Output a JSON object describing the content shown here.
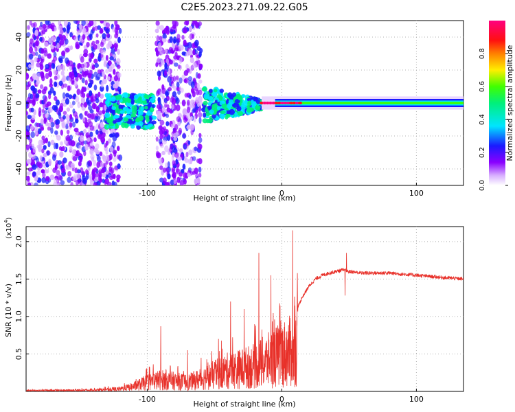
{
  "title": "C2E5.2023.271.09.22.G05",
  "colors": {
    "snr_line": "#e8312a",
    "grid": "#b0b0b0",
    "spectrogram_background": "#ffffff"
  },
  "chart_data": [
    {
      "type": "heatmap",
      "title": "C2E5.2023.271.09.22.G05",
      "xlabel": "Height of straight line (km)",
      "ylabel": "Frequency (Hz)",
      "xlim": [
        -190,
        135
      ],
      "ylim": [
        -50,
        50
      ],
      "xticks": [
        -100,
        0,
        100
      ],
      "yticks": [
        -40,
        -20,
        0,
        20,
        40
      ],
      "colorbar": {
        "label": "Normalized spectral amplitude",
        "range": [
          0,
          1
        ],
        "ticks": [
          0.0,
          0.2,
          0.4,
          0.6,
          0.8
        ],
        "tick_labels": [
          "0.0",
          "0.2",
          "0.4",
          "0.6",
          "0.8"
        ],
        "colormap": "rainbow (white-purple-blue-cyan-green-yellow-red-magenta)"
      },
      "features": [
        {
          "name": "scatter noise band",
          "x_range": [
            -190,
            -120
          ],
          "freq_range": [
            -50,
            50
          ]
        },
        {
          "name": "scatter noise band",
          "x_range": [
            -93,
            -60
          ],
          "freq_range": [
            -50,
            50
          ]
        },
        {
          "name": "signal onset cluster",
          "x_range": [
            -130,
            -95
          ],
          "freq_range": [
            -15,
            5
          ]
        },
        {
          "name": "converging signal",
          "x_range": [
            -58,
            -15
          ],
          "freq_range": [
            -12,
            10
          ]
        },
        {
          "name": "steady carrier near 0 Hz",
          "x_range": [
            -15,
            135
          ],
          "freq_range": [
            -3,
            3
          ],
          "peak_amplitude": 0.95
        }
      ],
      "grid": true
    },
    {
      "type": "line",
      "xlabel": "Height of straight line (km)",
      "ylabel": "SNR (10 * v/v)",
      "y_multiplier_label": "(x10",
      "y_multiplier_exp": "4",
      "y_multiplier_close": ")",
      "xlim": [
        -190,
        135
      ],
      "ylim": [
        0,
        2.2
      ],
      "xticks": [
        -100,
        0,
        100
      ],
      "yticks": [
        0.5,
        1.0,
        1.5,
        2.0
      ],
      "ytick_labels": [
        "0.5",
        "1.0",
        "1.5",
        "2.0"
      ],
      "envelope": {
        "x": [
          -190,
          -140,
          -120,
          -110,
          -100,
          -90,
          -80,
          -70,
          -60,
          -50,
          -40,
          -30,
          -20,
          -10,
          0,
          5,
          8,
          10,
          15,
          20,
          25,
          30,
          35,
          40,
          45,
          50,
          60,
          80,
          100,
          120,
          135
        ],
        "y": [
          0.02,
          0.03,
          0.06,
          0.12,
          0.22,
          0.28,
          0.25,
          0.22,
          0.3,
          0.4,
          0.5,
          0.55,
          0.62,
          0.75,
          0.9,
          0.95,
          1.0,
          1.05,
          1.25,
          1.4,
          1.5,
          1.55,
          1.58,
          1.6,
          1.62,
          1.6,
          1.58,
          1.58,
          1.55,
          1.52,
          1.5
        ]
      },
      "spikes": [
        {
          "x": -90,
          "y": 0.87
        },
        {
          "x": -70,
          "y": 0.55
        },
        {
          "x": -47,
          "y": 0.7
        },
        {
          "x": -38,
          "y": 1.2
        },
        {
          "x": -28,
          "y": 1.1
        },
        {
          "x": -17,
          "y": 1.85
        },
        {
          "x": -8,
          "y": 1.55
        },
        {
          "x": 8,
          "y": 2.15
        },
        {
          "x": 9,
          "y": 0.2
        },
        {
          "x": 48,
          "y": 1.85
        },
        {
          "x": 47,
          "y": 1.28
        }
      ],
      "series": [
        {
          "values_ref": "envelope"
        }
      ],
      "grid": true
    }
  ]
}
